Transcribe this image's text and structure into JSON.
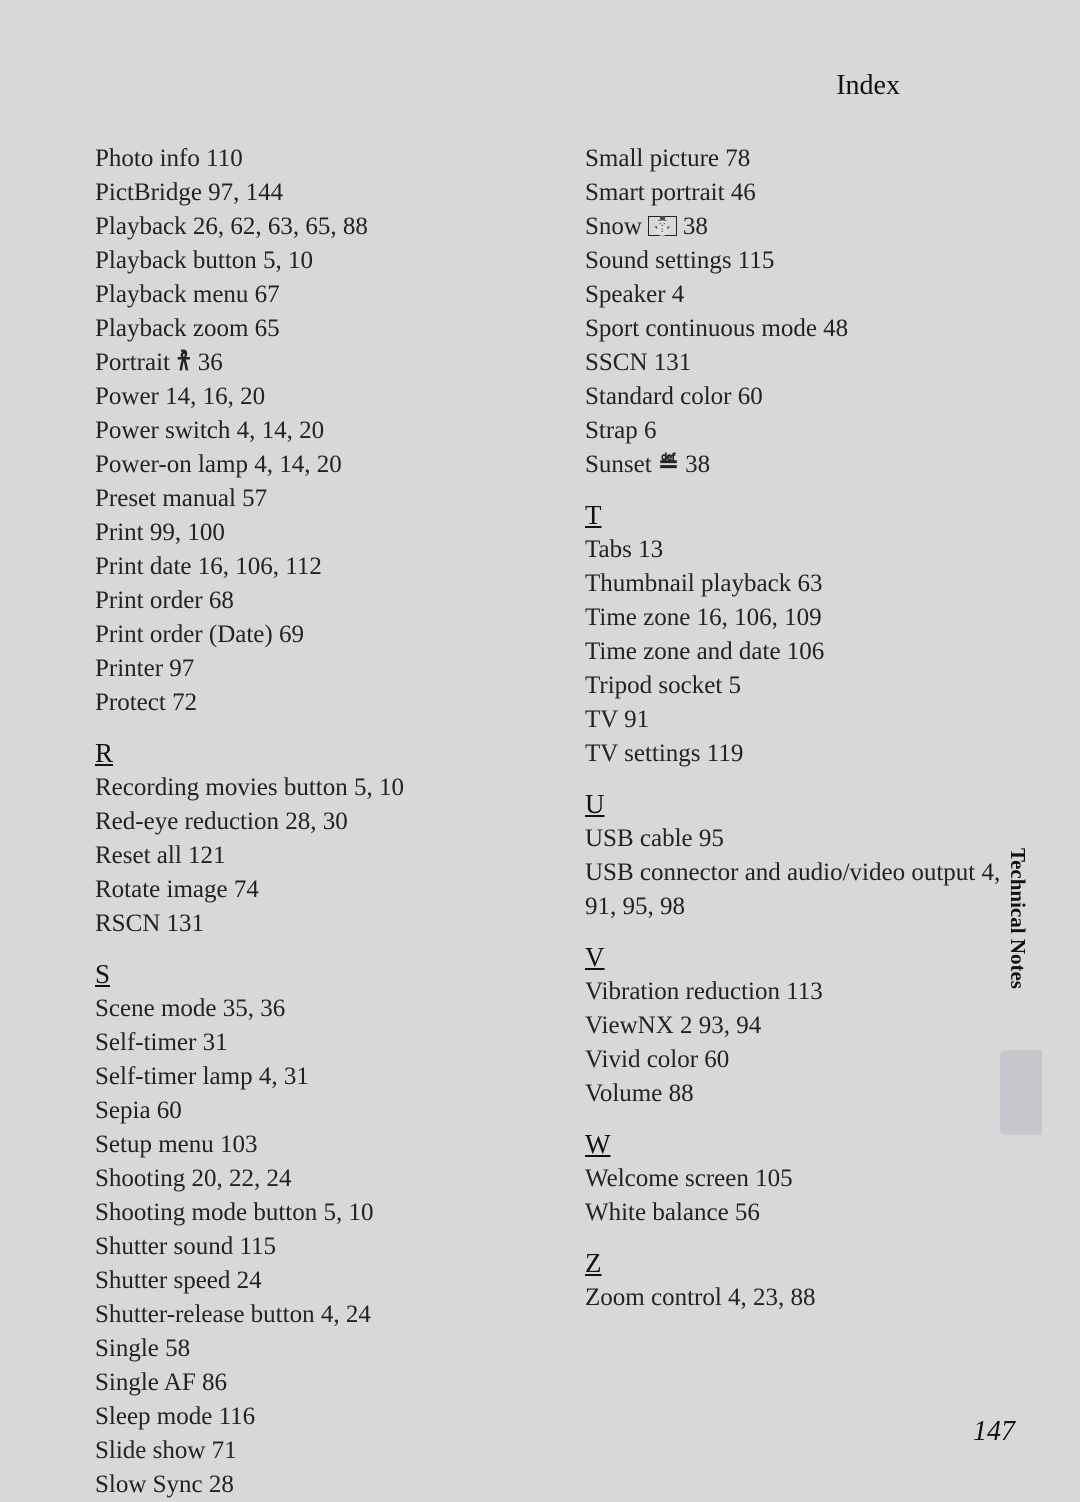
{
  "header": "Index",
  "side_label": "Technical Notes",
  "page_number": "147",
  "colors": {
    "page_bg": "#d8d8d8",
    "text": "#222222",
    "thumb": "#c7c6cd"
  },
  "left_column": [
    {
      "type": "entry",
      "text": "Photo info 110"
    },
    {
      "type": "entry",
      "text": "PictBridge 97, 144"
    },
    {
      "type": "entry",
      "text": "Playback 26, 62, 63, 65, 88"
    },
    {
      "type": "entry",
      "text": "Playback button 5, 10"
    },
    {
      "type": "entry",
      "text": "Playback menu 67"
    },
    {
      "type": "entry",
      "text": "Playback zoom 65"
    },
    {
      "type": "entry_icon",
      "prefix": "Portrait ",
      "icon": "𐀪",
      "suffix": " 36"
    },
    {
      "type": "entry",
      "text": "Power 14, 16, 20"
    },
    {
      "type": "entry",
      "text": "Power switch 4, 14, 20"
    },
    {
      "type": "entry",
      "text": "Power-on lamp 4, 14, 20"
    },
    {
      "type": "entry",
      "text": "Preset manual 57"
    },
    {
      "type": "entry",
      "text": "Print 99, 100"
    },
    {
      "type": "entry",
      "text": "Print date 16, 106, 112"
    },
    {
      "type": "entry",
      "text": "Print order 68"
    },
    {
      "type": "entry",
      "text": "Print order (Date) 69"
    },
    {
      "type": "entry",
      "text": "Printer 97"
    },
    {
      "type": "entry",
      "text": "Protect 72"
    },
    {
      "type": "letter",
      "text": "R"
    },
    {
      "type": "entry",
      "text": "Recording movies button 5, 10"
    },
    {
      "type": "entry",
      "text": "Red-eye reduction 28, 30"
    },
    {
      "type": "entry",
      "text": "Reset all 121"
    },
    {
      "type": "entry",
      "text": "Rotate image 74"
    },
    {
      "type": "entry",
      "text": "RSCN 131"
    },
    {
      "type": "letter",
      "text": "S"
    },
    {
      "type": "entry",
      "text": "Scene mode 35, 36"
    },
    {
      "type": "entry",
      "text": "Self-timer 31"
    },
    {
      "type": "entry",
      "text": "Self-timer lamp 4, 31"
    },
    {
      "type": "entry",
      "text": "Sepia 60"
    },
    {
      "type": "entry",
      "text": "Setup menu 103"
    },
    {
      "type": "entry",
      "text": "Shooting 20, 22, 24"
    },
    {
      "type": "entry",
      "text": "Shooting mode button 5, 10"
    },
    {
      "type": "entry",
      "text": "Shutter sound 115"
    },
    {
      "type": "entry",
      "text": "Shutter speed 24"
    },
    {
      "type": "entry",
      "text": "Shutter-release button 4, 24"
    },
    {
      "type": "entry",
      "text": "Single 58"
    },
    {
      "type": "entry",
      "text": "Single AF 86"
    },
    {
      "type": "entry",
      "text": "Sleep mode 116"
    },
    {
      "type": "entry",
      "text": "Slide show 71"
    },
    {
      "type": "entry",
      "text": "Slow Sync 28"
    }
  ],
  "right_column": [
    {
      "type": "entry",
      "text": "Small picture 78"
    },
    {
      "type": "entry",
      "text": "Smart portrait 46"
    },
    {
      "type": "entry_icon_box",
      "prefix": "Snow ",
      "icon": "⛄",
      "suffix": " 38"
    },
    {
      "type": "entry",
      "text": "Sound settings 115"
    },
    {
      "type": "entry",
      "text": "Speaker 4"
    },
    {
      "type": "entry",
      "text": "Sport continuous mode 48"
    },
    {
      "type": "entry",
      "text": "SSCN 131"
    },
    {
      "type": "entry",
      "text": "Standard color 60"
    },
    {
      "type": "entry",
      "text": "Strap 6"
    },
    {
      "type": "entry_icon",
      "prefix": "Sunset ",
      "icon": "≝",
      "suffix": " 38"
    },
    {
      "type": "letter",
      "text": "T"
    },
    {
      "type": "entry",
      "text": "Tabs 13"
    },
    {
      "type": "entry",
      "text": "Thumbnail playback 63"
    },
    {
      "type": "entry",
      "text": "Time zone 16, 106, 109"
    },
    {
      "type": "entry",
      "text": "Time zone and date 106"
    },
    {
      "type": "entry",
      "text": "Tripod socket 5"
    },
    {
      "type": "entry",
      "text": "TV 91"
    },
    {
      "type": "entry",
      "text": "TV settings 119"
    },
    {
      "type": "letter",
      "text": "U"
    },
    {
      "type": "entry",
      "text": "USB cable 95"
    },
    {
      "type": "entry",
      "text": "USB connector and audio/video output 4, 91, 95, 98"
    },
    {
      "type": "letter",
      "text": "V"
    },
    {
      "type": "entry",
      "text": "Vibration reduction 113"
    },
    {
      "type": "entry",
      "text": "ViewNX 2 93, 94"
    },
    {
      "type": "entry",
      "text": "Vivid color 60"
    },
    {
      "type": "entry",
      "text": "Volume 88"
    },
    {
      "type": "letter",
      "text": "W"
    },
    {
      "type": "entry",
      "text": "Welcome screen 105"
    },
    {
      "type": "entry",
      "text": "White balance 56"
    },
    {
      "type": "letter",
      "text": "Z"
    },
    {
      "type": "entry",
      "text": "Zoom control 4, 23, 88"
    }
  ]
}
